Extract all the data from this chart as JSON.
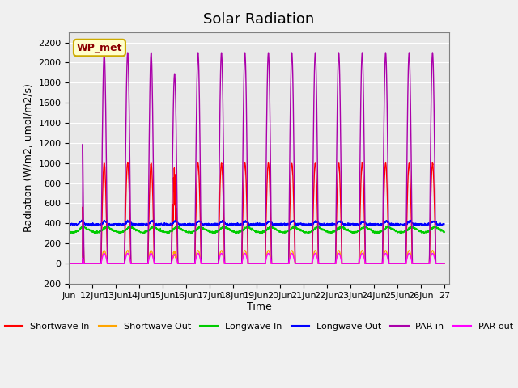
{
  "title": "Solar Radiation",
  "xlabel": "Time",
  "ylabel": "Radiation (W/m2, umol/m2/s)",
  "ylim": [
    -200,
    2300
  ],
  "yticks": [
    -200,
    0,
    200,
    400,
    600,
    800,
    1000,
    1200,
    1400,
    1600,
    1800,
    2000,
    2200
  ],
  "xlim_days": [
    11.0,
    27.2
  ],
  "xtick_days": [
    11,
    12,
    13,
    14,
    15,
    16,
    17,
    18,
    19,
    20,
    21,
    22,
    23,
    24,
    25,
    26,
    27
  ],
  "xtick_labels": [
    "Jun",
    "12Jun",
    "13Jun",
    "14Jun",
    "15Jun",
    "16Jun",
    "17Jun",
    "18Jun",
    "19Jun",
    "20Jun",
    "21Jun",
    "22Jun",
    "23Jun",
    "24Jun",
    "25Jun",
    "26Jun",
    "27"
  ],
  "legend_labels": [
    "Shortwave In",
    "Shortwave Out",
    "Longwave In",
    "Longwave Out",
    "PAR in",
    "PAR out"
  ],
  "legend_colors": [
    "#ff0000",
    "#ffa500",
    "#00cc00",
    "#0000ff",
    "#aa00aa",
    "#ff00ff"
  ],
  "wp_met_label": "WP_met",
  "background_color": "#e8e8e8",
  "axes_facecolor": "#e8e8e8",
  "num_days": 16,
  "shortwave_in_peak": 1000,
  "shortwave_out_peak": 130,
  "par_in_peak": 2100,
  "par_out_peak": 100,
  "longwave_in_base": 330,
  "longwave_out_base": 400
}
